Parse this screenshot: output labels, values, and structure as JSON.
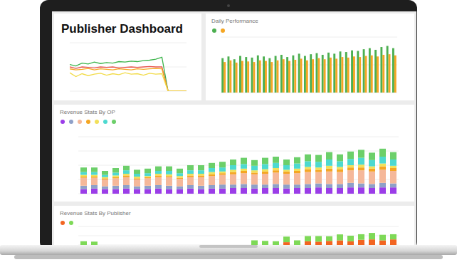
{
  "header": {
    "title": "Publisher Dashboard"
  },
  "chart_data": [
    {
      "type": "line",
      "categories": [
        null,
        null,
        null,
        null,
        null,
        null,
        null,
        null,
        null,
        null,
        null,
        null,
        null,
        null,
        null,
        null,
        null,
        null,
        null,
        null
      ],
      "series": [
        {
          "color": "#3cb44b",
          "values": [
            55,
            52,
            58,
            56,
            60,
            57,
            59,
            58,
            61,
            60,
            62,
            61,
            63,
            64,
            66,
            70,
            0,
            0,
            0,
            0
          ]
        },
        {
          "color": "#e8554e",
          "values": [
            50,
            47,
            50,
            49,
            48,
            50,
            49,
            50,
            48,
            49,
            50,
            49,
            50,
            51,
            50,
            50,
            0,
            0,
            0,
            0
          ]
        },
        {
          "color": "#f5a623",
          "values": [
            46,
            44,
            45,
            47,
            44,
            46,
            45,
            44,
            46,
            45,
            44,
            46,
            45,
            46,
            47,
            46,
            0,
            0,
            0,
            0
          ]
        },
        {
          "color": "#f2dc4a",
          "values": [
            38,
            30,
            36,
            32,
            35,
            37,
            33,
            36,
            34,
            38,
            35,
            36,
            33,
            37,
            35,
            36,
            0,
            0,
            0,
            0
          ]
        }
      ],
      "ylim": [
        0,
        100
      ],
      "yticks": [
        0,
        50,
        100
      ],
      "grid": true,
      "tick_labels": false
    },
    {
      "type": "bar",
      "title": "Daily Performance",
      "categories": [
        null,
        null,
        null,
        null,
        null,
        null,
        null,
        null,
        null,
        null,
        null,
        null,
        null,
        null,
        null,
        null,
        null,
        null,
        null,
        null,
        null,
        null,
        null,
        null,
        null,
        null,
        null,
        null,
        null,
        null
      ],
      "series": [
        {
          "color": "#4caf50",
          "values": [
            62,
            65,
            60,
            66,
            64,
            63,
            67,
            65,
            62,
            66,
            68,
            64,
            67,
            70,
            66,
            69,
            71,
            68,
            72,
            70,
            74,
            73,
            76,
            75,
            78,
            80,
            77,
            82,
            84,
            80
          ]
        },
        {
          "color": "#f5a623",
          "values": [
            55,
            58,
            54,
            57,
            56,
            55,
            58,
            57,
            55,
            58,
            60,
            57,
            59,
            61,
            58,
            60,
            62,
            60,
            63,
            61,
            64,
            63,
            65,
            64,
            66,
            67,
            65,
            68,
            69,
            67
          ]
        }
      ],
      "ylim": [
        0,
        100
      ],
      "yticks": [
        0,
        50,
        100
      ],
      "grid": true,
      "tick_labels": false,
      "legend": "top"
    },
    {
      "type": "bar",
      "title": "Revenue Stats By OP",
      "stacked": true,
      "categories": [
        null,
        null,
        null,
        null,
        null,
        null,
        null,
        null,
        null,
        null,
        null,
        null,
        null,
        null,
        null,
        null,
        null,
        null,
        null,
        null,
        null,
        null,
        null,
        null,
        null,
        null,
        null,
        null,
        null,
        null
      ],
      "series": [
        {
          "color": "#9b3de8",
          "values": [
            8,
            9,
            8,
            8,
            9,
            8,
            8,
            9,
            8,
            8,
            9,
            8,
            9,
            9,
            10,
            10,
            9,
            10,
            10,
            9,
            10,
            10,
            11,
            10,
            10,
            11,
            11,
            10,
            11,
            11
          ]
        },
        {
          "color": "#8fa0c8",
          "values": [
            6,
            6,
            5,
            6,
            6,
            5,
            6,
            6,
            6,
            5,
            6,
            6,
            6,
            7,
            6,
            7,
            7,
            6,
            7,
            7,
            6,
            7,
            7,
            7,
            7,
            8,
            7,
            7,
            8,
            7
          ]
        },
        {
          "color": "#f5b89a",
          "values": [
            14,
            13,
            12,
            13,
            14,
            12,
            13,
            14,
            15,
            13,
            14,
            15,
            16,
            17,
            18,
            19,
            18,
            19,
            20,
            19,
            20,
            21,
            20,
            22,
            21,
            22,
            23,
            22,
            23,
            22
          ]
        },
        {
          "color": "#f5a623",
          "values": [
            2,
            2,
            2,
            2,
            3,
            2,
            2,
            3,
            2,
            2,
            3,
            3,
            3,
            3,
            4,
            4,
            3,
            4,
            4,
            4,
            4,
            5,
            4,
            5,
            5,
            5,
            5,
            5,
            6,
            5
          ]
        },
        {
          "color": "#f2e05a",
          "values": [
            3,
            3,
            2,
            3,
            3,
            3,
            2,
            3,
            3,
            3,
            3,
            3,
            4,
            3,
            4,
            4,
            4,
            4,
            4,
            3,
            4,
            4,
            4,
            5,
            4,
            4,
            5,
            4,
            5,
            4
          ]
        },
        {
          "color": "#4dd9d0",
          "values": [
            5,
            5,
            4,
            5,
            6,
            5,
            5,
            5,
            6,
            5,
            6,
            6,
            7,
            7,
            8,
            8,
            8,
            9,
            9,
            8,
            9,
            10,
            10,
            11,
            10,
            11,
            12,
            11,
            12,
            11
          ]
        },
        {
          "color": "#6ccf6a",
          "values": [
            8,
            8,
            7,
            8,
            8,
            7,
            8,
            8,
            8,
            8,
            9,
            9,
            9,
            10,
            10,
            11,
            10,
            11,
            11,
            10,
            11,
            12,
            12,
            13,
            12,
            13,
            14,
            13,
            14,
            13
          ]
        }
      ],
      "ylim": [
        0,
        100
      ],
      "yticks": [
        0,
        25,
        50,
        75,
        100
      ],
      "grid": true,
      "tick_labels": false,
      "legend": "top"
    },
    {
      "type": "bar",
      "title": "Revenue Stats By Publisher",
      "stacked": true,
      "categories": [
        null,
        null,
        null,
        null,
        null,
        null,
        null,
        null,
        null,
        null,
        null,
        null,
        null,
        null,
        null,
        null,
        null,
        null,
        null,
        null,
        null,
        null,
        null,
        null,
        null,
        null,
        null,
        null,
        null,
        null
      ],
      "series": [
        {
          "color": "#f26522",
          "values": [
            0,
            0,
            0,
            0,
            0,
            0,
            0,
            0,
            0,
            0,
            0,
            0,
            0,
            0,
            0,
            0,
            0,
            0,
            0,
            15,
            0,
            20,
            18,
            22,
            25,
            20,
            28,
            30,
            25,
            30
          ]
        },
        {
          "color": "#7ed957",
          "values": [
            20,
            18,
            0,
            0,
            0,
            0,
            0,
            0,
            0,
            0,
            0,
            0,
            0,
            0,
            0,
            0,
            25,
            22,
            20,
            30,
            25,
            28,
            30,
            25,
            32,
            30,
            30,
            35,
            30,
            28
          ]
        }
      ],
      "ylim": [
        0,
        100
      ],
      "yticks": [
        0,
        50,
        100
      ],
      "grid": true,
      "tick_labels": false,
      "legend": "top"
    }
  ]
}
